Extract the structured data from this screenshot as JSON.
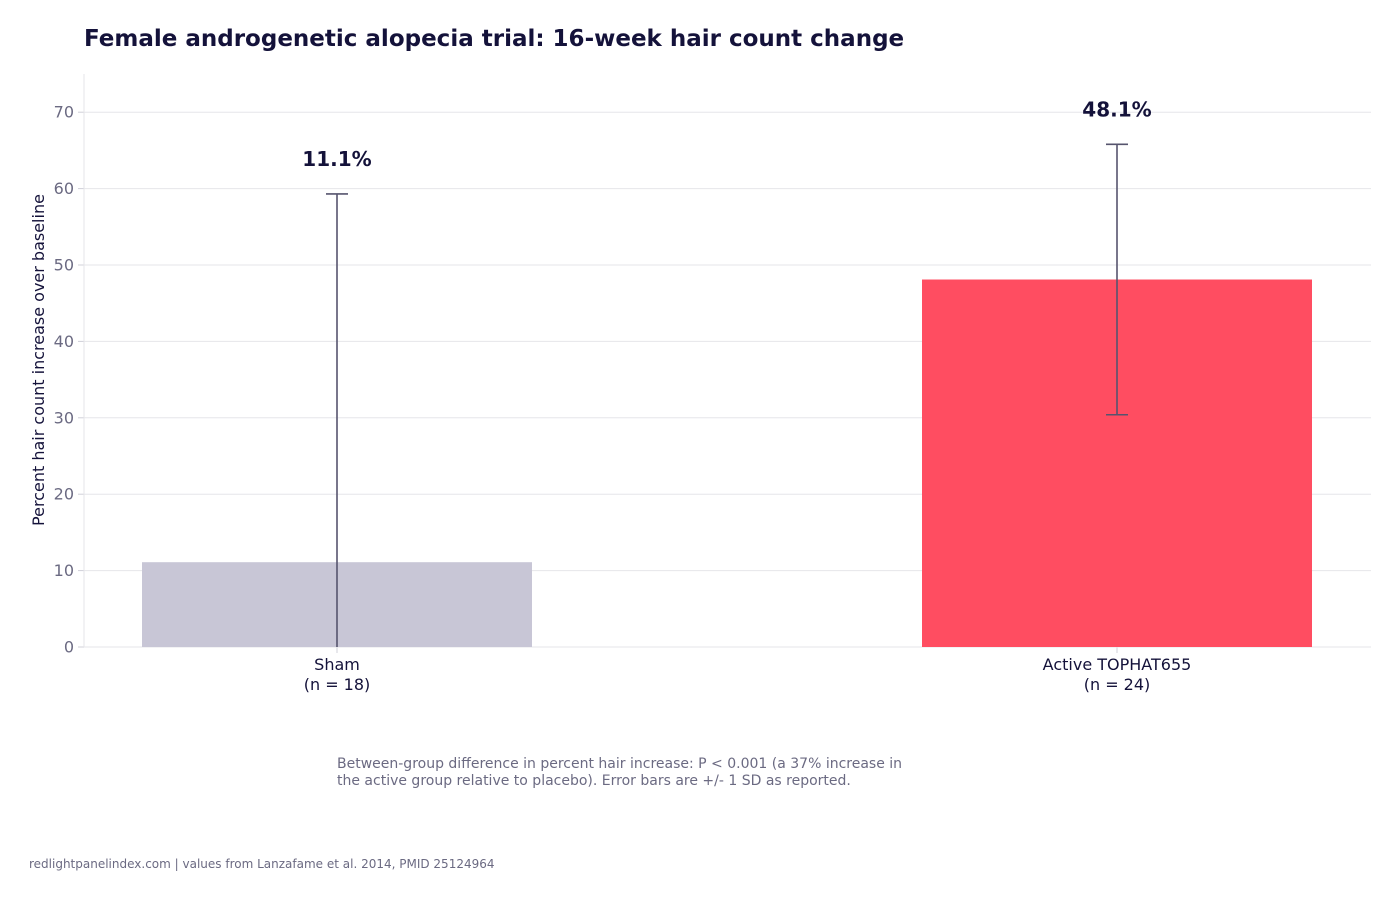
{
  "chart_data": {
    "type": "bar",
    "title": "Female androgenetic alopecia trial: 16-week hair count change",
    "ylabel": "Percent hair count increase over baseline",
    "xlabel": "",
    "ylim": [
      0,
      75
    ],
    "yticks": [
      0,
      10,
      20,
      30,
      40,
      50,
      60,
      70
    ],
    "grid": true,
    "categories": [
      {
        "label": "Sham",
        "n_label": "(n = 18)"
      },
      {
        "label": "Active TOPHAT655",
        "n_label": "(n = 24)"
      }
    ],
    "values": [
      11.1,
      48.1
    ],
    "error_sd": [
      48.2,
      17.7
    ],
    "value_labels": [
      "11.1%",
      "48.1%"
    ],
    "bar_colors": [
      "#c8c6d6",
      "#ff4d61"
    ],
    "note_lines": [
      "Between-group difference in percent hair increase: P < 0.001 (a 37% increase in",
      "the active group relative to placebo). Error bars are +/- 1 SD as reported."
    ],
    "source": "redlightpanelindex.com | values from Lanzafame et al. 2014, PMID 25124964"
  }
}
